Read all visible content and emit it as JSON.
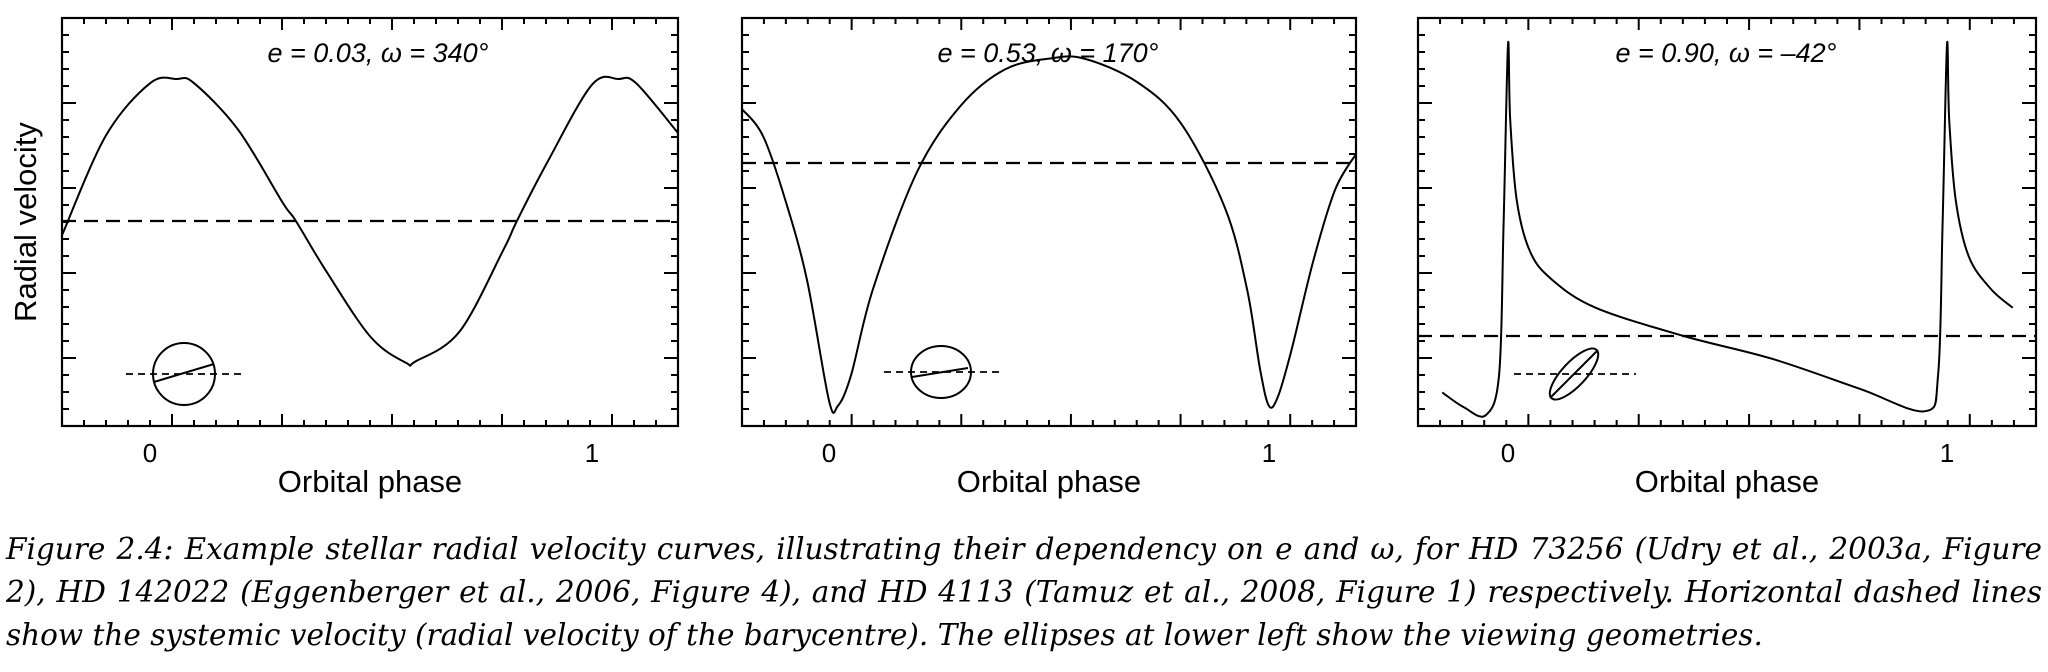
{
  "chart_data": [
    {
      "type": "line",
      "panel": "left",
      "annotation": "e = 0.03,  ω = 340°",
      "e": 0.03,
      "omega_deg": 340,
      "xlabel": "Orbital phase",
      "ylabel": "Radial velocity",
      "xlim": [
        -0.2,
        1.2
      ],
      "x_ticklabels": [
        "0",
        "1"
      ],
      "y_ticklabels": [],
      "series": [
        {
          "type": "line",
          "x": [
            -0.2,
            -0.1,
            0.0,
            0.06,
            0.1,
            0.2,
            0.3,
            0.33,
            0.4,
            0.5,
            0.58,
            0.6,
            0.7,
            0.8,
            0.83,
            0.9,
            1.0,
            1.06,
            1.1,
            1.2
          ],
          "values": [
            -0.1,
            0.6,
            0.97,
            1.0,
            0.97,
            0.64,
            0.13,
            0.0,
            -0.36,
            -0.82,
            -1.0,
            -0.99,
            -0.78,
            -0.2,
            0.0,
            0.42,
            0.96,
            1.0,
            0.97,
            0.62
          ]
        },
        {
          "type": "dashed",
          "systemic_velocity": 0.0
        }
      ]
    },
    {
      "type": "line",
      "panel": "middle",
      "annotation": "e = 0.53,  ω = 170°",
      "e": 0.53,
      "omega_deg": 170,
      "xlabel": "Orbital phase",
      "xlim": [
        -0.2,
        1.2
      ],
      "x_ticklabels": [
        "0",
        "1"
      ],
      "y_ticklabels": [],
      "series": [
        {
          "type": "line",
          "x": [
            -0.2,
            -0.15,
            -0.1,
            -0.05,
            0.0,
            0.02,
            0.05,
            0.1,
            0.2,
            0.3,
            0.4,
            0.5,
            0.58,
            0.7,
            0.8,
            0.9,
            0.95,
            0.98,
            1.0,
            1.02,
            1.05,
            1.1,
            1.15,
            1.2
          ],
          "values": [
            0.3,
            0.15,
            -0.2,
            -0.65,
            -1.32,
            -1.35,
            -1.18,
            -0.7,
            -0.05,
            0.32,
            0.52,
            0.58,
            0.58,
            0.45,
            0.22,
            -0.25,
            -0.7,
            -1.15,
            -1.35,
            -1.3,
            -1.05,
            -0.55,
            -0.15,
            0.05
          ]
        },
        {
          "type": "dashed",
          "systemic_velocity": 0.0
        }
      ]
    },
    {
      "type": "line",
      "panel": "right",
      "annotation": "e = 0.90,  ω = –42°",
      "e": 0.9,
      "omega_deg": -42,
      "xlabel": "Orbital phase",
      "xlim": [
        -0.2,
        1.2
      ],
      "x_ticklabels": [
        "0",
        "1"
      ],
      "y_ticklabels": [],
      "series": [
        {
          "type": "line",
          "x": [
            -0.15,
            -0.1,
            -0.05,
            -0.02,
            -0.01,
            0.0,
            0.005,
            0.02,
            0.05,
            0.1,
            0.2,
            0.4,
            0.6,
            0.8,
            0.95,
            0.98,
            0.99,
            1.0,
            1.005,
            1.02,
            1.05,
            1.1,
            1.15
          ],
          "values": [
            -0.3,
            -0.38,
            -0.42,
            -0.2,
            0.6,
            1.55,
            1.15,
            0.72,
            0.45,
            0.3,
            0.15,
            0.0,
            -0.12,
            -0.28,
            -0.4,
            -0.2,
            0.6,
            1.55,
            1.15,
            0.72,
            0.42,
            0.25,
            0.15
          ]
        },
        {
          "type": "dashed",
          "systemic_velocity": 0.0
        }
      ]
    }
  ],
  "caption": "Figure 2.4:  Example stellar radial velocity curves, illustrating their dependency on e and ω, for HD 73256 (Udry et al., 2003a, Figure 2), HD 142022 (Eggenberger et al., 2006, Figure 4), and HD 4113 (Tamuz et al., 2008, Figure 1) respectively.  Horizontal dashed lines show the systemic velocity (radial velocity of the barycentre). The ellipses at lower left show the viewing geometries."
}
